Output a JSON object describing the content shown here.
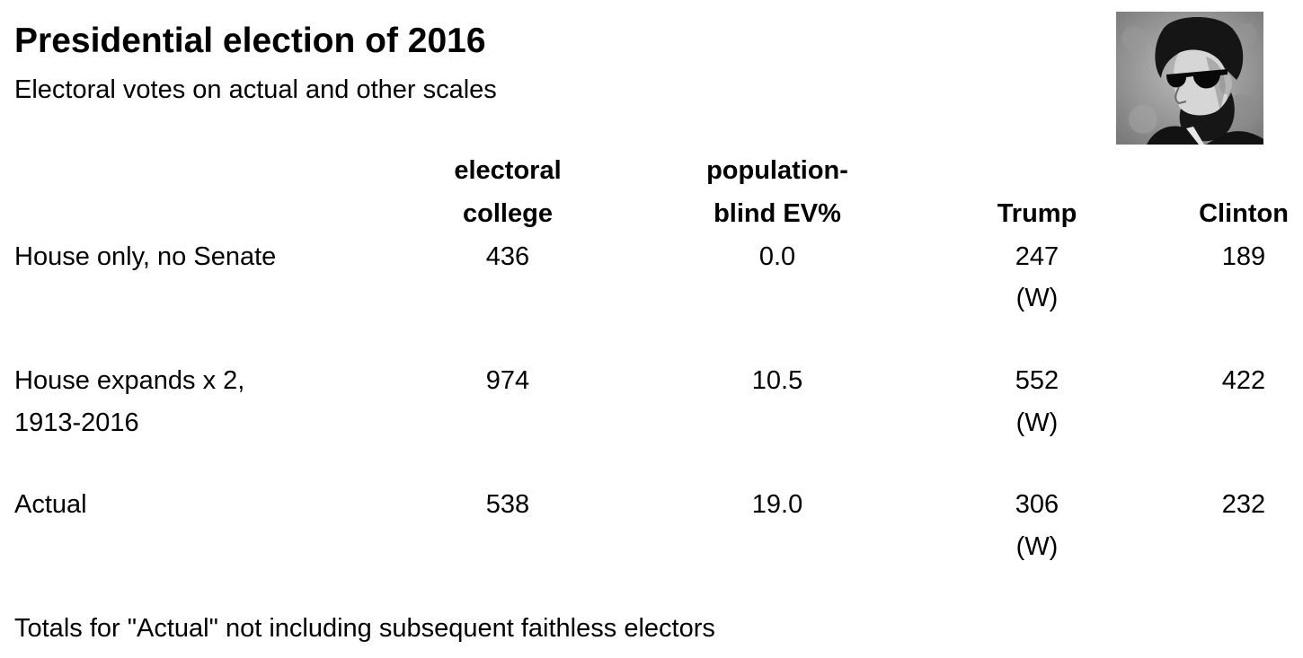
{
  "header": {
    "title": "Presidential election of 2016",
    "subtitle": "Electoral votes on actual and other scales"
  },
  "image": {
    "description_icon": "lincoln-portrait-with-sunglasses-icon"
  },
  "table": {
    "columns": [
      {
        "line1": "electoral",
        "line2": "college"
      },
      {
        "line1": "population-",
        "line2": "blind EV%"
      },
      {
        "line1": "",
        "line2": "Trump"
      },
      {
        "line1": "",
        "line2": "Clinton"
      }
    ],
    "rows": [
      {
        "label_line1": "House only, no Senate",
        "label_line2": "",
        "electoral_college": "436",
        "population_blind": "0.0",
        "trump": "247",
        "trump_mark": "(W)",
        "clinton": "189"
      },
      {
        "label_line1": "House expands x 2,",
        "label_line2": "1913-2016",
        "electoral_college": "974",
        "population_blind": "10.5",
        "trump": "552",
        "trump_mark": "(W)",
        "clinton": "422"
      },
      {
        "label_line1": "Actual",
        "label_line2": "",
        "electoral_college": "538",
        "population_blind": "19.0",
        "trump": "306",
        "trump_mark": "(W)",
        "clinton": "232"
      }
    ]
  },
  "footnote": "Totals for \"Actual\" not including subsequent faithless electors"
}
